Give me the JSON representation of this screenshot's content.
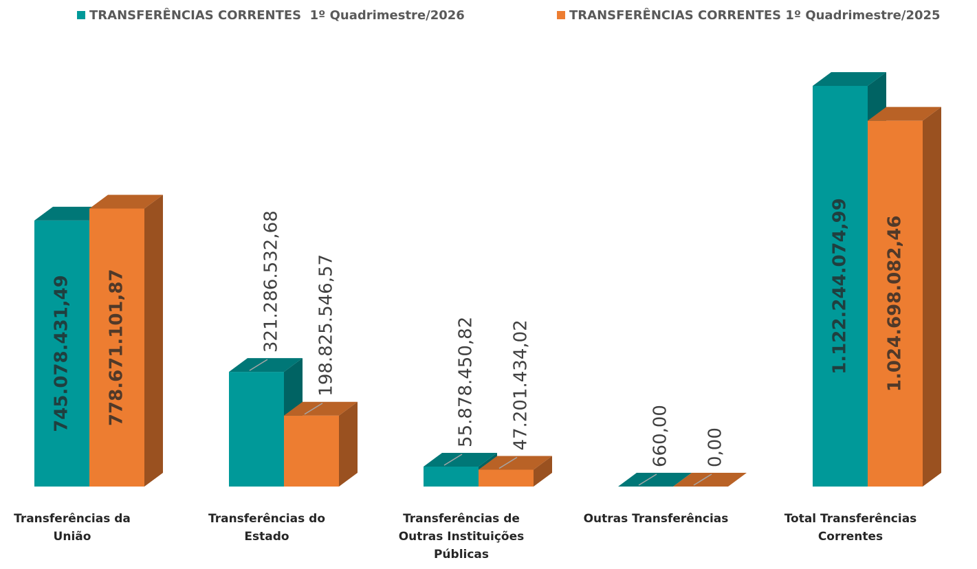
{
  "chart_data": {
    "type": "bar3d",
    "categories": [
      "Transferências da União",
      "Transferências do Estado",
      "Transferências de Outras Instituições Públicas",
      "Outras Transferências",
      "Total Transferências Correntes"
    ],
    "series": [
      {
        "name": "TRANSFERÊNCIAS CORRENTES  1º Quadrimestre/2026",
        "color": "#009999",
        "values": [
          745078431.49,
          321286532.68,
          55878450.82,
          660.0,
          1122244074.99
        ],
        "value_labels": [
          "745.078.431,49",
          "321.286.532,68",
          "55.878.450,82",
          "660,00",
          "1.122.244.074,99"
        ]
      },
      {
        "name": "TRANSFERÊNCIAS CORRENTES 1º Quadrimestre/2025",
        "color": "#ed7d31",
        "values": [
          778671101.87,
          198825546.57,
          47201434.02,
          0.0,
          1024698082.46
        ],
        "value_labels": [
          "778.671.101,87",
          "198.825.546,57",
          "47.201.434,02",
          "0,00",
          "1.024.698.082,46"
        ]
      }
    ],
    "legend": "top"
  }
}
